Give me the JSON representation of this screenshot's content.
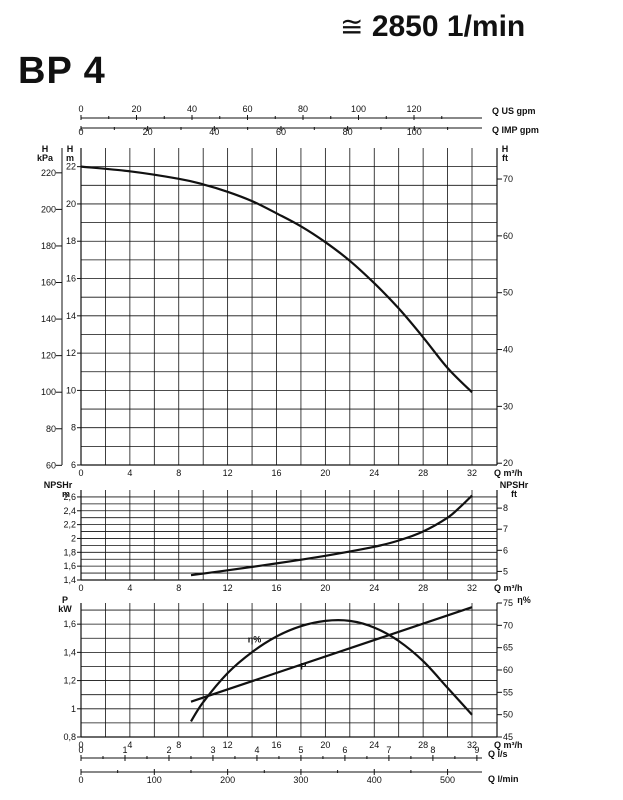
{
  "header": {
    "title": "BP 4",
    "speed_symbol": "≅",
    "speed": "2850 1/min"
  },
  "chart_data": [
    {
      "type": "line",
      "name": "head-curve",
      "xlabel": "Q m³/h",
      "xlim": [
        0,
        32
      ],
      "x_ticks": [
        0,
        4,
        8,
        12,
        16,
        20,
        24,
        28,
        32
      ],
      "ylim": [
        6,
        23
      ],
      "y_left_m_ticks": [
        6,
        8,
        10,
        12,
        14,
        16,
        18,
        20,
        22
      ],
      "y_left_m_label": [
        "H",
        "m"
      ],
      "y_left_kpa_ticks": [
        60,
        80,
        100,
        120,
        140,
        160,
        180,
        200,
        220
      ],
      "y_left_kpa_label": [
        "H",
        "kPa"
      ],
      "y_right_ft_ticks": [
        20,
        30,
        40,
        50,
        60,
        70
      ],
      "y_right_ft_label": [
        "H",
        "ft"
      ],
      "top_axis_us_gpm": {
        "label": "Q US gpm",
        "ticks": [
          0,
          20,
          40,
          60,
          80,
          100,
          120
        ]
      },
      "top_axis_imp_gpm": {
        "label": "Q IMP gpm",
        "ticks": [
          0,
          20,
          40,
          60,
          80,
          100
        ]
      },
      "series": [
        {
          "name": "H",
          "x": [
            0,
            4,
            8,
            10,
            12,
            14,
            16,
            18,
            20,
            22,
            24,
            26,
            28,
            30,
            32
          ],
          "y": [
            22,
            21.75,
            21.35,
            21.05,
            20.65,
            20.15,
            19.5,
            18.8,
            17.95,
            16.95,
            15.75,
            14.4,
            12.85,
            11.2,
            9.9
          ]
        }
      ]
    },
    {
      "type": "line",
      "name": "npshr-curve",
      "xlabel": "Q m³/h",
      "xlim": [
        0,
        32
      ],
      "x_ticks": [
        0,
        4,
        8,
        12,
        16,
        20,
        24,
        28,
        32
      ],
      "ylim": [
        1.4,
        2.7
      ],
      "y_left_ticks": [
        "1,4",
        "1,6",
        "1,8",
        "2",
        "2,2",
        "2,4",
        "2,6"
      ],
      "y_left_label": [
        "NPSHr",
        "m"
      ],
      "y_right_ft_ticks": [
        5,
        6,
        7,
        8
      ],
      "y_right_ft_label": [
        "NPSHr",
        "ft"
      ],
      "series": [
        {
          "name": "NPSHr",
          "x": [
            9,
            12,
            16,
            20,
            24,
            26,
            28,
            30,
            31,
            32
          ],
          "y": [
            1.47,
            1.54,
            1.64,
            1.75,
            1.88,
            1.97,
            2.1,
            2.3,
            2.45,
            2.62
          ]
        }
      ]
    },
    {
      "type": "line",
      "name": "power-efficiency-curve",
      "xlabel": "Q m³/h",
      "xlim": [
        0,
        32
      ],
      "x_ticks": [
        0,
        4,
        8,
        12,
        16,
        20,
        24,
        28,
        32
      ],
      "ylim": [
        0.8,
        1.75
      ],
      "y_left_ticks": [
        "0,8",
        "1",
        "1,2",
        "1,4",
        "1,6"
      ],
      "y_left_label": [
        "P",
        "kW"
      ],
      "eta_lim": [
        45,
        75
      ],
      "y_right_eta_ticks": [
        45,
        50,
        55,
        60,
        65,
        70,
        75
      ],
      "y_right_eta_label": "η%",
      "eta_curve_label": "η%",
      "power_curve_label": "P",
      "bottom_axis_ls": {
        "label": "Q l/s",
        "ticks": [
          0,
          1,
          2,
          3,
          4,
          5,
          6,
          7,
          8,
          9
        ]
      },
      "bottom_axis_lmin": {
        "label": "Q l/min",
        "ticks": [
          0,
          100,
          200,
          300,
          400,
          500
        ]
      },
      "series": [
        {
          "name": "P (kW)",
          "x": [
            9,
            32
          ],
          "y": [
            1.05,
            1.72
          ]
        },
        {
          "name": "η (%)",
          "x": [
            9,
            10,
            12,
            14,
            16,
            18,
            20,
            22,
            24,
            26,
            28,
            30,
            32
          ],
          "y": [
            48.5,
            52.8,
            59.3,
            64,
            67.5,
            69.8,
            71,
            71,
            69.5,
            66.5,
            62,
            56,
            50
          ]
        }
      ]
    }
  ]
}
